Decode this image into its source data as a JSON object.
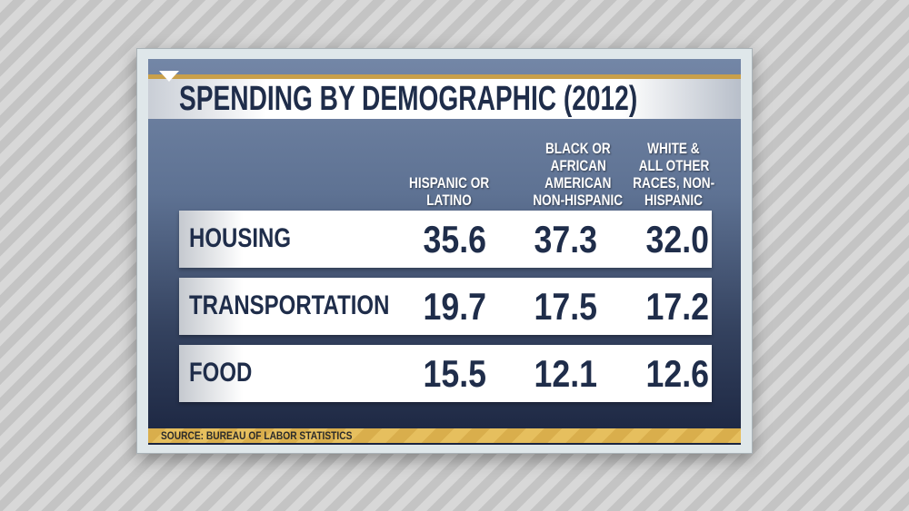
{
  "title": "SPENDING BY DEMOGRAPHIC (2012)",
  "source": "SOURCE: BUREAU OF LABOR STATISTICS",
  "chart_data": {
    "type": "table",
    "title": "SPENDING BY DEMOGRAPHIC (2012)",
    "columns": [
      [
        "HISPANIC OR",
        "LATINO"
      ],
      [
        "BLACK OR",
        "AFRICAN",
        "AMERICAN",
        "NON-HISPANIC"
      ],
      [
        "WHITE &",
        "ALL OTHER",
        "RACES, NON-",
        "HISPANIC"
      ]
    ],
    "rows": [
      {
        "label": "HOUSING",
        "values": [
          "35.6",
          "37.3",
          "32.0"
        ]
      },
      {
        "label": "TRANSPORTATION",
        "values": [
          "19.7",
          "17.5",
          "17.2"
        ]
      },
      {
        "label": "FOOD",
        "values": [
          "15.5",
          "12.1",
          "12.6"
        ]
      }
    ]
  },
  "colors": {
    "navy": "#1f2d4a",
    "gold": "#c9a04a",
    "panel": "#5e7293"
  }
}
